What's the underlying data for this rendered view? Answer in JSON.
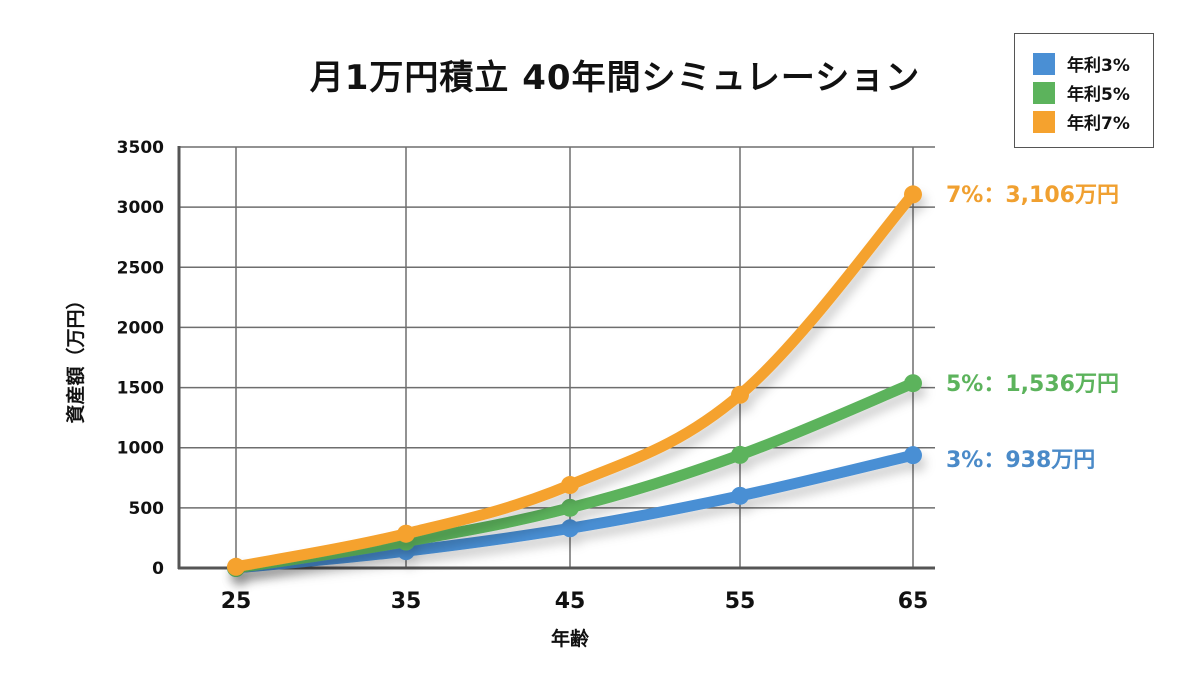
{
  "title": "月1万円積立 40年間シミュレーション",
  "legend": {
    "position": "top-right",
    "items": [
      {
        "label": "年利3%",
        "color": "#4a8fd4"
      },
      {
        "label": "年利5%",
        "color": "#5cb35c"
      },
      {
        "label": "年利7%",
        "color": "#f5a22e"
      }
    ]
  },
  "end_labels": [
    {
      "series": "年利7%",
      "text": "7%：3,106万円",
      "color": "#f0a030"
    },
    {
      "series": "年利5%",
      "text": "5%：1,536万円",
      "color": "#5cb35c"
    },
    {
      "series": "年利3%",
      "text": "3%：938万円",
      "color": "#4a8ac8"
    }
  ],
  "chart_data": {
    "type": "line",
    "title": "月1万円積立 40年間シミュレーション",
    "xlabel": "年齢",
    "ylabel": "資産額（万円）",
    "x": [
      25,
      35,
      45,
      55,
      65
    ],
    "x_tick_labels": [
      "25",
      "35",
      "45",
      "55",
      "65"
    ],
    "y_tick_labels": [
      "0",
      "500",
      "1000",
      "1500",
      "2000",
      "2500",
      "3000",
      "3500"
    ],
    "ylim": [
      0,
      3500
    ],
    "grid": true,
    "legend_position": "top-right",
    "series": [
      {
        "name": "年利3%",
        "color": "#4a8fd4",
        "values": [
          0,
          140,
          330,
          600,
          938
        ]
      },
      {
        "name": "年利5%",
        "color": "#5cb35c",
        "values": [
          0,
          220,
          500,
          940,
          1536
        ]
      },
      {
        "name": "年利7%",
        "color": "#f5a22e",
        "values": [
          10,
          285,
          690,
          1440,
          3106
        ]
      }
    ],
    "annotations": [
      "7%：3,106万円",
      "5%：1,536万円",
      "3%：938万円"
    ]
  }
}
